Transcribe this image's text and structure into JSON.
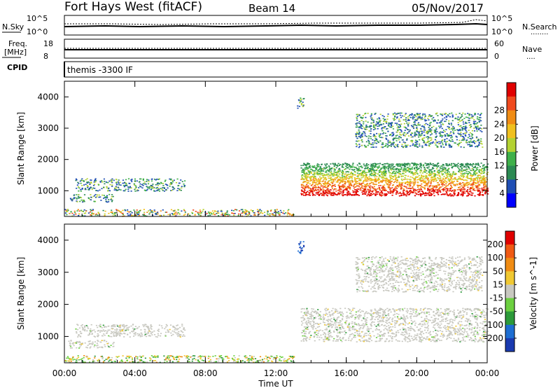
{
  "header": {
    "station": "Fort Hays West (fitACF)",
    "beam": "Beam 14",
    "date": "05/Nov/2017"
  },
  "noise_panel": {
    "left_label": "N.Sky",
    "left_top_tick": "10^5",
    "left_bottom_tick": "10^0",
    "right_label": "N.Search",
    "right_top_tick": "10^5",
    "right_bottom_tick": "10^0",
    "right_legend_dots": "........"
  },
  "freq_panel": {
    "left_label_1": "Freq.",
    "left_label_2": "[MHz]",
    "left_top_tick": "18",
    "left_bottom_tick": "8",
    "right_label": "Nave",
    "right_top_tick": "60",
    "right_bottom_tick": "0",
    "right_legend_dots": "....",
    "cpid_label": "CPID"
  },
  "cpid_panel": {
    "text": "themis -3300 IF"
  },
  "colors": {
    "axis": "#000000",
    "power_scale": [
      "#0000ff",
      "#1f4eb4",
      "#2c8a53",
      "#3fb04a",
      "#b4d232",
      "#f0c01e",
      "#f08c14",
      "#f04a1e",
      "#e00000"
    ],
    "velocity_scale": [
      "#1a3ab0",
      "#1e6ed2",
      "#2c9a3a",
      "#6cd040",
      "#c8c8c0",
      "#f0c832",
      "#f08c14",
      "#f05a14",
      "#e00000"
    ]
  },
  "chart_data": [
    {
      "type": "heatmap",
      "name": "power-panel",
      "xlabel": "",
      "ylabel": "Slant Range [km]",
      "xlim": [
        0,
        24
      ],
      "ylim": [
        180,
        4500
      ],
      "y_ticks": [
        "1000",
        "2000",
        "3000",
        "4000"
      ],
      "x_ticks": [
        "00:00",
        "04:00",
        "08:00",
        "12:00",
        "16:00",
        "20:00",
        "00:00"
      ],
      "colorbar": {
        "label": "Power [dB]",
        "ticks": [
          "4",
          "8",
          "12",
          "16",
          "20",
          "24",
          "28"
        ]
      },
      "echo_regions": [
        {
          "t_start": 0.0,
          "t_end": 13.0,
          "r_low": 200,
          "r_high": 420,
          "level": "weak-to-moderate"
        },
        {
          "t_start": 0.3,
          "t_end": 2.8,
          "r_low": 650,
          "r_high": 900,
          "level": "weak"
        },
        {
          "t_start": 0.6,
          "t_end": 6.8,
          "r_low": 1000,
          "r_high": 1400,
          "level": "weak"
        },
        {
          "t_start": 13.4,
          "t_end": 24.0,
          "r_low": 850,
          "r_high": 1900,
          "level": "strong"
        },
        {
          "t_start": 13.2,
          "t_end": 13.6,
          "r_low": 3600,
          "r_high": 4000,
          "level": "weak"
        },
        {
          "t_start": 16.5,
          "t_end": 23.7,
          "r_low": 2400,
          "r_high": 3500,
          "level": "weak"
        }
      ]
    },
    {
      "type": "heatmap",
      "name": "velocity-panel",
      "xlabel": "Time UT",
      "ylabel": "Slant Range [km]",
      "xlim": [
        0,
        24
      ],
      "ylim": [
        180,
        4500
      ],
      "y_ticks": [
        "1000",
        "2000",
        "3000",
        "4000"
      ],
      "x_ticks": [
        "00:00",
        "04:00",
        "08:00",
        "12:00",
        "16:00",
        "20:00",
        "00:00"
      ],
      "colorbar": {
        "label": "Velocity [m s^-1]",
        "ticks": [
          "200",
          "100",
          "50",
          "15",
          "-15",
          "-50",
          "-100",
          "-200"
        ]
      },
      "echo_regions": [
        {
          "t_start": 0.0,
          "t_end": 13.0,
          "r_low": 200,
          "r_high": 420,
          "level": "mixed-orange-green"
        },
        {
          "t_start": 0.2,
          "t_end": 2.8,
          "r_low": 650,
          "r_high": 900,
          "level": "ground-scatter"
        },
        {
          "t_start": 0.6,
          "t_end": 6.8,
          "r_low": 1000,
          "r_high": 1400,
          "level": "ground-scatter"
        },
        {
          "t_start": 13.4,
          "t_end": 24.0,
          "r_low": 850,
          "r_high": 1900,
          "level": "ground-scatter"
        },
        {
          "t_start": 13.2,
          "t_end": 13.6,
          "r_low": 3600,
          "r_high": 4000,
          "level": "blue"
        },
        {
          "t_start": 16.5,
          "t_end": 23.7,
          "r_low": 2400,
          "r_high": 3500,
          "level": "ground-scatter"
        }
      ]
    }
  ]
}
